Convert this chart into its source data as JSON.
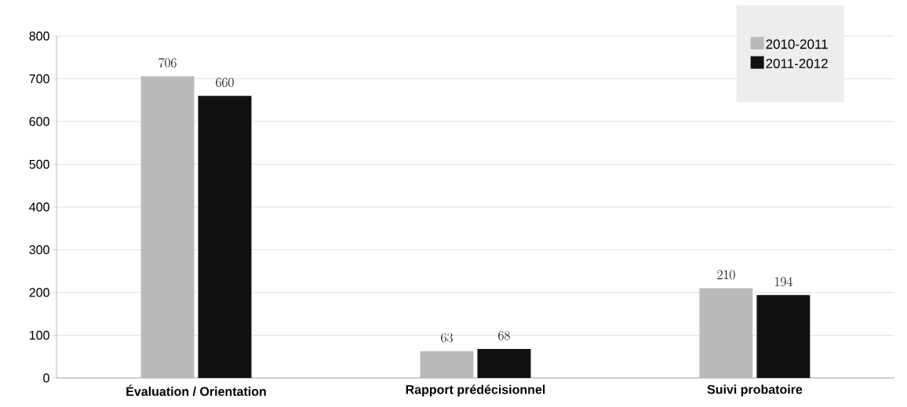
{
  "chart_data": {
    "type": "bar",
    "categories": [
      "Évaluation / Orientation",
      "Rapport prédécisionnel",
      "Suivi probatoire"
    ],
    "series": [
      {
        "name": "2010-2011",
        "color": "#b9bbbb",
        "values": [
          706,
          63,
          210
        ]
      },
      {
        "name": "2011-2012",
        "color": "#111111",
        "values": [
          660,
          68,
          194
        ]
      }
    ],
    "ylim": [
      0,
      800
    ],
    "yticks": [
      0,
      100,
      200,
      300,
      400,
      500,
      600,
      700,
      800
    ],
    "grid": "y",
    "legend": "top right",
    "data_labels": true
  }
}
